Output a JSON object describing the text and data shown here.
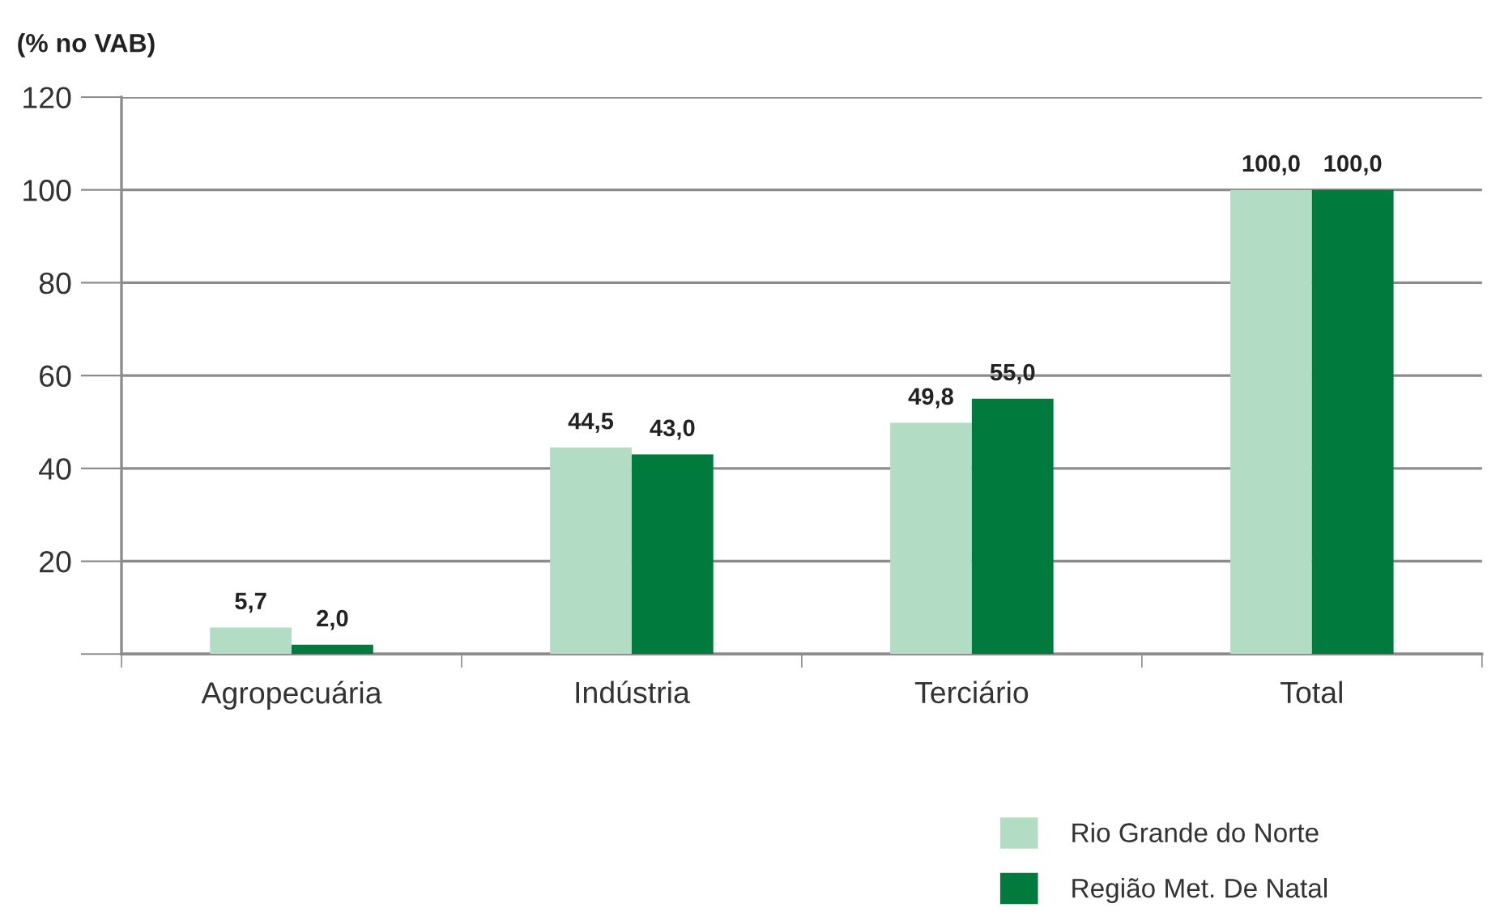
{
  "chart_data": {
    "type": "bar",
    "ylabel": "(% no VAB)",
    "categories": [
      "Agropecuária",
      "Indústria",
      "Terciário",
      "Total"
    ],
    "series": [
      {
        "name": "Rio Grande do Norte",
        "color": "#b3dcc5",
        "values": [
          5.7,
          44.5,
          49.8,
          100.0
        ],
        "value_labels": [
          "5,7",
          "44,5",
          "49,8",
          "100,0"
        ]
      },
      {
        "name": "Região Met. De Natal",
        "color": "#007a3d",
        "values": [
          2.0,
          43.0,
          55.0,
          100.0
        ],
        "value_labels": [
          "2,0",
          "43,0",
          "55,0",
          "100,0"
        ]
      }
    ],
    "ylim": [
      0,
      120
    ],
    "yticks": [
      {
        "value": 0,
        "label": null
      },
      20,
      40,
      60,
      80,
      100,
      120
    ],
    "grid": "y",
    "legend": "bottom right"
  }
}
